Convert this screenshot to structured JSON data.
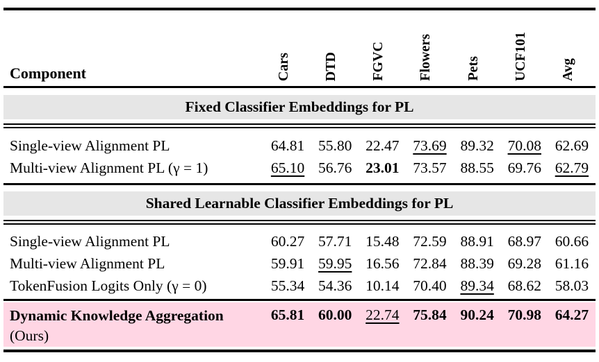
{
  "table": {
    "header": {
      "component_label": "Component",
      "datasets": [
        "Cars",
        "DTD",
        "FGVC",
        "Flowers",
        "Pets",
        "UCF101",
        "Avg"
      ]
    },
    "sections": [
      {
        "title": "Fixed Classifier Embeddings for PL",
        "rows": [
          {
            "label": "Single-view Alignment PL",
            "values": [
              "64.81",
              "55.80",
              "22.47",
              "73.69",
              "89.32",
              "70.08",
              "62.69"
            ]
          },
          {
            "label": "Multi-view Alignment PL (γ = 1)",
            "values": [
              "65.10",
              "56.76",
              "23.01",
              "73.57",
              "88.55",
              "69.76",
              "62.79"
            ]
          }
        ]
      },
      {
        "title": "Shared Learnable Classifier Embeddings for PL",
        "rows": [
          {
            "label": "Single-view Alignment PL",
            "values": [
              "60.27",
              "57.71",
              "15.48",
              "72.59",
              "88.91",
              "68.97",
              "60.66"
            ]
          },
          {
            "label": "Multi-view Alignment PL",
            "values": [
              "59.91",
              "59.95",
              "16.56",
              "72.84",
              "88.39",
              "69.28",
              "61.16"
            ]
          },
          {
            "label": "TokenFusion Logits Only (γ = 0)",
            "values": [
              "55.34",
              "54.36",
              "10.14",
              "70.40",
              "89.34",
              "68.62",
              "58.03"
            ]
          }
        ]
      }
    ],
    "highlight_row": {
      "label_bold": "Dynamic Knowledge Aggregation",
      "label_suffix": "(Ours)",
      "values": [
        "65.81",
        "60.00",
        "22.74",
        "75.84",
        "90.24",
        "70.98",
        "64.27"
      ]
    },
    "colors": {
      "section_band_bg": "#e6e6e6",
      "highlight_bg": "#ffd6e4",
      "rule_color": "#000000"
    }
  }
}
